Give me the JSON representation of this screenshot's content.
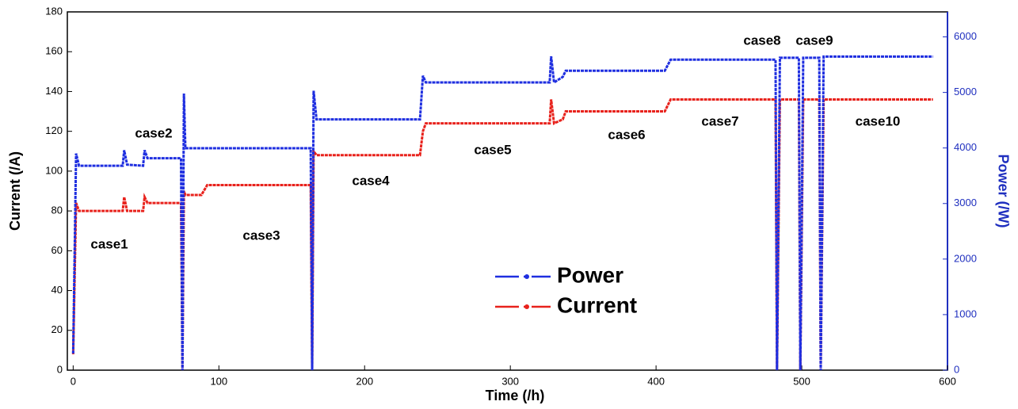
{
  "chart_data": {
    "type": "line",
    "x_label": "Time (/h)",
    "y_label": "Current (/A)",
    "y2_label": "Power (/W)",
    "xlim": [
      -4,
      600
    ],
    "xticks": [
      0,
      100,
      200,
      300,
      400,
      500,
      600
    ],
    "ylim": [
      0,
      180
    ],
    "yticks": [
      0,
      20,
      40,
      60,
      80,
      100,
      120,
      140,
      160,
      180
    ],
    "y2lim": [
      0,
      6450
    ],
    "y2ticks": [
      0,
      1000,
      2000,
      3000,
      4000,
      5000,
      6000
    ],
    "legend": "center",
    "x": [
      0,
      2,
      4,
      34,
      35,
      37,
      48,
      49,
      51,
      74,
      75,
      76,
      77,
      88,
      92,
      163,
      164,
      165,
      167,
      238,
      240,
      242,
      327,
      328,
      330,
      336,
      338,
      406,
      410,
      482,
      483,
      485,
      498,
      499,
      501,
      512,
      513,
      515,
      590
    ],
    "series": [
      {
        "name": "Power",
        "color": "#1f2fe0",
        "axis": "y2",
        "values": [
          300,
          3900,
          3680,
          3680,
          3960,
          3700,
          3680,
          3960,
          3815,
          3815,
          0,
          4980,
          3995,
          3995,
          3995,
          3995,
          0,
          5030,
          4515,
          4515,
          5300,
          5180,
          5180,
          5650,
          5180,
          5280,
          5390,
          5390,
          5590,
          5590,
          0,
          5625,
          5625,
          0,
          5625,
          5625,
          0,
          5645,
          5645
        ]
      },
      {
        "name": "Current",
        "color": "#e8221c",
        "values": [
          8,
          84,
          80,
          80,
          87,
          80,
          80,
          87,
          84,
          84,
          0,
          90,
          88,
          88,
          93,
          93,
          0,
          110,
          108,
          108,
          120,
          124,
          124,
          136,
          124,
          126,
          130,
          130,
          136,
          136,
          0,
          136,
          136,
          0,
          136,
          136,
          0,
          136,
          136
        ]
      }
    ],
    "annotations": [
      "case1",
      "case2",
      "case3",
      "case4",
      "case5",
      "case6",
      "case7",
      "case8",
      "case9",
      "case10"
    ]
  }
}
